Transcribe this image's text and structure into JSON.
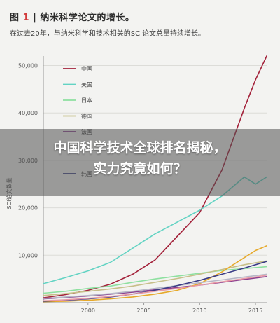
{
  "figure": {
    "title_prefix": "图",
    "title_number": "1",
    "title_sep": "|",
    "title_text": "纳米科学论文的增长。",
    "subtitle": "在过去20年，与纳米科学和技术相关的SCI论文总量持续增长。"
  },
  "overlay": {
    "line1": "中国科学技术全球排名揭秘，",
    "line2": "实力究竟如何？"
  },
  "chart_data": {
    "type": "line",
    "ylabel": "SCI论文数量",
    "xlabel": "",
    "xlim": [
      1996,
      2016
    ],
    "ylim": [
      0,
      52000
    ],
    "x_ticks": [
      2000,
      2005,
      2010,
      2015
    ],
    "y_ticks": [
      10000,
      20000,
      30000,
      40000,
      50000
    ],
    "y_tick_labels": [
      "10,000",
      "20,000",
      "30,000",
      "40,000",
      "50,000"
    ],
    "x": [
      1996,
      1998,
      2000,
      2002,
      2004,
      2006,
      2008,
      2010,
      2012,
      2014,
      2015,
      2016
    ],
    "series": [
      {
        "name": "中国",
        "color": "#a3213a",
        "values": [
          1000,
          1700,
          2600,
          3900,
          6000,
          9000,
          14000,
          19000,
          28000,
          41000,
          47000,
          52000
        ]
      },
      {
        "name": "美国",
        "color": "#62d3c3",
        "values": [
          4000,
          5300,
          6700,
          8500,
          11500,
          14500,
          17000,
          19500,
          22500,
          26500,
          25000,
          26500
        ]
      },
      {
        "name": "日本",
        "color": "#8ee0a0",
        "values": [
          2000,
          2400,
          3000,
          3500,
          4300,
          5000,
          5600,
          6200,
          6800,
          7200,
          7400,
          7600
        ]
      },
      {
        "name": "德国",
        "color": "#c7bf8a",
        "values": [
          1500,
          1900,
          2400,
          2900,
          3500,
          4300,
          5100,
          6000,
          7000,
          8000,
          8400,
          8800
        ]
      },
      {
        "name": "法国",
        "color": "#8a3f8f",
        "values": [
          800,
          1100,
          1400,
          1800,
          2200,
          2700,
          3200,
          3700,
          4300,
          4900,
          5200,
          5500
        ]
      },
      {
        "name": "",
        "color": "#e6a92a",
        "values": [
          200,
          300,
          500,
          800,
          1200,
          1800,
          2600,
          4000,
          6500,
          9500,
          11000,
          12000
        ]
      },
      {
        "name": "",
        "color": "#b7b7c7",
        "values": [
          900,
          1200,
          1500,
          1900,
          2400,
          3000,
          3600,
          4200,
          4800,
          5400,
          5700,
          6000
        ]
      },
      {
        "name": "韩国",
        "color": "#3a3c86",
        "values": [
          300,
          500,
          800,
          1200,
          1800,
          2600,
          3600,
          4700,
          6000,
          7300,
          8000,
          8700
        ]
      },
      {
        "name": "",
        "color": "#e89aa6",
        "values": [
          400,
          600,
          900,
          1300,
          1800,
          2400,
          3000,
          3700,
          4400,
          5100,
          5400,
          5800
        ]
      }
    ]
  }
}
